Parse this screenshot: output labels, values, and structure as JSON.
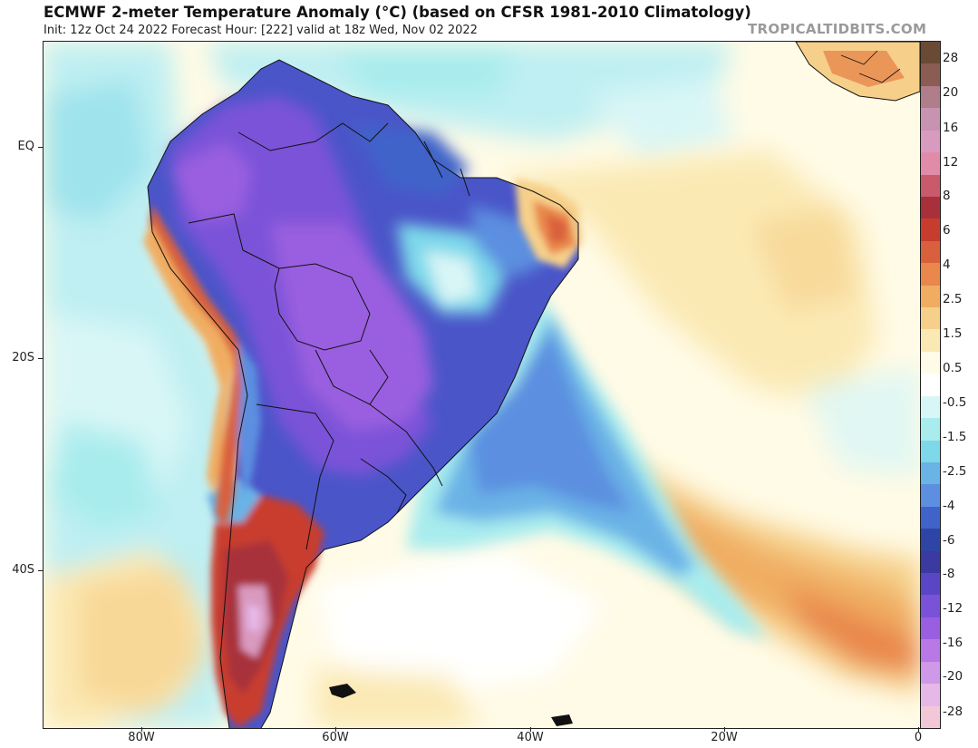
{
  "header": {
    "title": "ECMWF 2-meter Temperature Anomaly (°C) (based on CFSR 1981-2010 Climatology)",
    "subtitle": "Init: 12z Oct 24 2022   Forecast Hour: [222]   valid at 18z Wed, Nov 02 2022",
    "credit": "TROPICALTIDBITS.COM"
  },
  "axes": {
    "lat_labels": [
      "EQ",
      "20S",
      "40S"
    ],
    "lon_labels": [
      "80W",
      "60W",
      "40W",
      "20W",
      "0"
    ]
  },
  "colorbar": {
    "labels": [
      "28",
      "20",
      "16",
      "12",
      "8",
      "6",
      "4",
      "2.5",
      "1.5",
      "0.5",
      "-0.5",
      "-1.5",
      "-2.5",
      "-4",
      "-6",
      "-8",
      "-12",
      "-16",
      "-20",
      "-28"
    ],
    "colors": [
      "#6b4a35",
      "#8a5c52",
      "#b07d8a",
      "#c893b0",
      "#d99ac0",
      "#e08ca9",
      "#c85a6b",
      "#a8303a",
      "#c83c2e",
      "#d9603c",
      "#e9874c",
      "#f0ad62",
      "#f6d08a",
      "#fbe9b4",
      "#fffbe6",
      "#ffffff",
      "#d9f6f6",
      "#a8ecee",
      "#7dd8ea",
      "#6ab3e6",
      "#5c8fe0",
      "#3f63c9",
      "#2f45a6",
      "#3a3aa0",
      "#5a46c4",
      "#7a52d8",
      "#9a5ee0",
      "#b878e6",
      "#cf98e8",
      "#e6b8e8",
      "#f2c8d8"
    ]
  }
}
